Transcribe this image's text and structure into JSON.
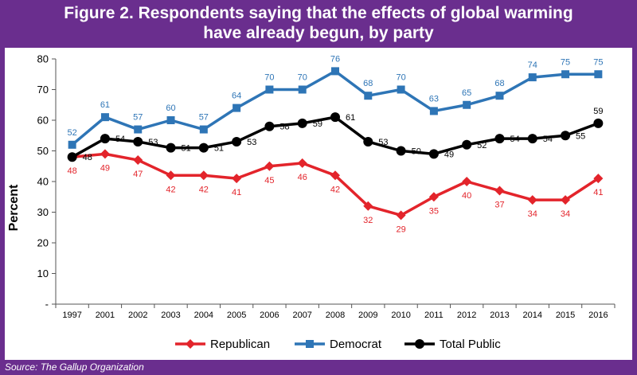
{
  "title_line1": "Figure 2.  Respondents saying that the effects of global warming",
  "title_line2": "have already begun, by party",
  "source": "Source:  The Gallup Organization",
  "chart_data": {
    "type": "line",
    "ylabel": "Percent",
    "xlabel": "",
    "ylim": [
      0,
      80
    ],
    "yticks": [
      "-",
      "10",
      "20",
      "30",
      "40",
      "50",
      "60",
      "70",
      "80"
    ],
    "categories": [
      "1997",
      "2001",
      "2002",
      "2003",
      "2004",
      "2005",
      "2006",
      "2007",
      "2008",
      "2009",
      "2010",
      "2011",
      "2012",
      "2013",
      "2014",
      "2015",
      "2016"
    ],
    "grid": false,
    "legend_position": "bottom",
    "series": [
      {
        "name": "Republican",
        "color": "#e3242b",
        "marker": "diamond",
        "label_position": "below",
        "values": [
          48,
          49,
          47,
          42,
          42,
          41,
          45,
          46,
          42,
          32,
          29,
          35,
          40,
          37,
          34,
          34,
          41
        ]
      },
      {
        "name": "Democrat",
        "color": "#2e75b6",
        "marker": "square",
        "label_position": "above",
        "values": [
          52,
          61,
          57,
          60,
          57,
          64,
          70,
          70,
          76,
          68,
          70,
          63,
          65,
          68,
          74,
          75,
          75
        ]
      },
      {
        "name": "Total Public",
        "color": "#000000",
        "marker": "circle",
        "label_position": "right",
        "values": [
          48,
          54,
          53,
          51,
          51,
          53,
          58,
          59,
          61,
          53,
          50,
          49,
          52,
          54,
          54,
          55,
          59
        ]
      }
    ]
  }
}
